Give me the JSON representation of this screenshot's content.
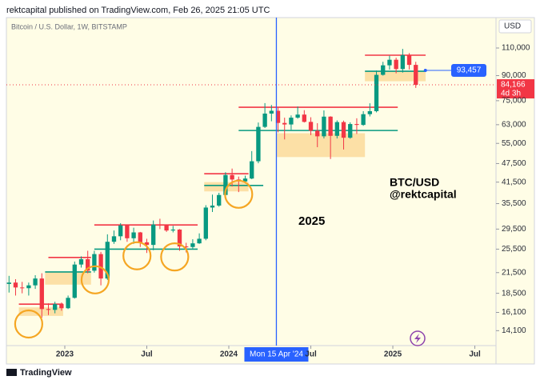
{
  "chart_data": {
    "type": "candlestick",
    "header": "rektcapital published on TradingView.com, Feb 26, 2025 21:05 UTC",
    "title": "Bitcoin / U.S. Dollar, 1W, BITSTAMP",
    "currency": "USD",
    "brand": "TradingView",
    "log_scale": true,
    "grid": false,
    "up_color": "#089981",
    "down_color": "#f23645",
    "x": [
      2022.66,
      2022.7,
      2022.74,
      2022.78,
      2022.82,
      2022.86,
      2022.9,
      2022.94,
      2022.98,
      2023.02,
      2023.06,
      2023.1,
      2023.14,
      2023.18,
      2023.22,
      2023.26,
      2023.3,
      2023.34,
      2023.38,
      2023.42,
      2023.46,
      2023.5,
      2023.54,
      2023.58,
      2023.62,
      2023.66,
      2023.7,
      2023.74,
      2023.78,
      2023.82,
      2023.86,
      2023.9,
      2023.94,
      2023.98,
      2024.02,
      2024.06,
      2024.1,
      2024.14,
      2024.18,
      2024.22,
      2024.26,
      2024.3,
      2024.34,
      2024.38,
      2024.42,
      2024.46,
      2024.5,
      2024.54,
      2024.58,
      2024.62,
      2024.66,
      2024.7,
      2024.74,
      2024.78,
      2024.82,
      2024.86,
      2024.9,
      2024.94,
      2024.98,
      2025.02,
      2025.06,
      2025.1,
      2025.14
    ],
    "open": [
      19800,
      20000,
      19300,
      19200,
      19600,
      20600,
      16500,
      16400,
      17100,
      16600,
      17900,
      22800,
      23700,
      21800,
      24600,
      20600,
      26900,
      28000,
      30300,
      27600,
      28800,
      26800,
      26300,
      30500,
      30300,
      29200,
      29400,
      26000,
      25900,
      26600,
      27500,
      34500,
      35000,
      37800,
      43700,
      42300,
      41700,
      42600,
      48300,
      62000,
      68300,
      69700,
      63800,
      63100,
      66300,
      67800,
      64300,
      60300,
      57900,
      66800,
      58100,
      64200,
      57300,
      63300,
      62900,
      68000,
      69500,
      90500,
      97000,
      101000,
      94400,
      104500,
      97300
    ],
    "high": [
      21000,
      20500,
      20100,
      20000,
      21100,
      21400,
      17200,
      17400,
      17300,
      18200,
      23300,
      24200,
      25200,
      25200,
      25000,
      28400,
      29200,
      30800,
      30500,
      29800,
      28900,
      27500,
      31400,
      31800,
      30500,
      30200,
      29500,
      26700,
      27400,
      28600,
      35100,
      37900,
      38400,
      44600,
      45800,
      43200,
      43500,
      52000,
      64000,
      73700,
      72700,
      71200,
      66300,
      67400,
      71900,
      70000,
      66500,
      63700,
      69900,
      67000,
      65000,
      64900,
      64100,
      66000,
      69500,
      73600,
      93400,
      99500,
      104000,
      102500,
      109300,
      106000,
      99500
    ],
    "low": [
      18600,
      18200,
      18500,
      18200,
      19100,
      15500,
      15800,
      16000,
      16300,
      16500,
      17800,
      22300,
      21400,
      21500,
      19600,
      20400,
      26500,
      27200,
      26900,
      26500,
      25900,
      24800,
      25300,
      29500,
      28900,
      28800,
      25200,
      24900,
      25600,
      26500,
      27200,
      33400,
      34700,
      37500,
      40200,
      38600,
      41100,
      42400,
      47600,
      61500,
      64600,
      59600,
      56600,
      60700,
      65800,
      64000,
      58400,
      53500,
      57000,
      49100,
      57000,
      52600,
      56900,
      58900,
      62500,
      66900,
      68900,
      90000,
      94000,
      91500,
      92000,
      94100,
      82300
    ],
    "close": [
      20000,
      19300,
      19200,
      19600,
      20600,
      16500,
      16400,
      17100,
      16600,
      17900,
      22800,
      23700,
      21800,
      24600,
      20600,
      26900,
      28000,
      30300,
      27600,
      28800,
      26800,
      26300,
      30500,
      30300,
      29200,
      29400,
      26000,
      25900,
      26600,
      27500,
      34500,
      35000,
      37800,
      43700,
      42300,
      41700,
      42600,
      48300,
      62000,
      68300,
      69700,
      63800,
      63100,
      66300,
      67800,
      64300,
      60300,
      57900,
      66800,
      58100,
      64200,
      57300,
      63300,
      62900,
      68000,
      69500,
      90500,
      97000,
      101000,
      94400,
      104500,
      97300,
      84166
    ],
    "last_label": "84,166",
    "countdown": "4d 3h",
    "xlim": [
      2022.644,
      2025.629
    ],
    "xticks": [
      {
        "value": 2023,
        "label": "2023"
      },
      {
        "value": 2023.5,
        "label": "Jul"
      },
      {
        "value": 2024,
        "label": "2024"
      },
      {
        "value": 2024.5,
        "label": "Jul"
      },
      {
        "value": 2025,
        "label": "2025"
      },
      {
        "value": 2025.5,
        "label": "Jul"
      }
    ],
    "ylim": [
      12650,
      137200
    ],
    "yticks": [
      {
        "value": 110000,
        "label": "110,000"
      },
      {
        "value": 90000,
        "label": "90,000"
      },
      {
        "value": 75000,
        "label": "75,000"
      },
      {
        "value": 63000,
        "label": "63,000"
      },
      {
        "value": 55000,
        "label": "55,000"
      },
      {
        "value": 47500,
        "label": "47,500"
      },
      {
        "value": 41500,
        "label": "41,500"
      },
      {
        "value": 35500,
        "label": "35,500"
      },
      {
        "value": 29500,
        "label": "29,500"
      },
      {
        "value": 25500,
        "label": "25,500"
      },
      {
        "value": 21500,
        "label": "21,500"
      },
      {
        "value": 18500,
        "label": "18,500"
      },
      {
        "value": 16100,
        "label": "16,100"
      },
      {
        "value": 14100,
        "label": "14,100"
      }
    ],
    "crosshair": {
      "x": 2024.29,
      "x_label": "Mon 15 Apr '24",
      "price": 93457,
      "price_label": "93,457",
      "color": "#2962ff"
    },
    "levels": [
      {
        "price": 17100,
        "x": [
          2022.72,
          2022.99
        ],
        "color": "#f23645"
      },
      {
        "price": 24000,
        "x": [
          2022.9,
          2023.16
        ],
        "color": "#f23645"
      },
      {
        "price": 21600,
        "x": [
          2022.88,
          2023.16
        ],
        "color": "#089981"
      },
      {
        "price": 30400,
        "x": [
          2023.18,
          2023.81
        ],
        "color": "#f23645"
      },
      {
        "price": 25500,
        "x": [
          2023.18,
          2023.81
        ],
        "color": "#089981"
      },
      {
        "price": 44100,
        "x": [
          2023.85,
          2024.12
        ],
        "color": "#f23645"
      },
      {
        "price": 40500,
        "x": [
          2023.85,
          2024.21
        ],
        "color": "#089981"
      },
      {
        "price": 71500,
        "x": [
          2024.06,
          2025.03
        ],
        "color": "#f23645"
      },
      {
        "price": 60400,
        "x": [
          2024.06,
          2025.03
        ],
        "color": "#089981"
      },
      {
        "price": 104400,
        "x": [
          2024.83,
          2025.2
        ],
        "color": "#f23645"
      },
      {
        "price": 92900,
        "x": [
          2024.83,
          2025.2
        ],
        "color": "#089981"
      }
    ],
    "zones": [
      {
        "x": [
          2022.72,
          2022.99
        ],
        "y": [
          15700,
          16700
        ]
      },
      {
        "x": [
          2022.88,
          2023.16
        ],
        "y": [
          19700,
          21600
        ]
      },
      {
        "x": [
          2023.85,
          2024.12
        ],
        "y": [
          38800,
          41500
        ]
      },
      {
        "x": [
          2024.29,
          2024.83
        ],
        "y": [
          49800,
          59200
        ]
      },
      {
        "x": [
          2024.83,
          2025.2
        ],
        "y": [
          86400,
          92900
        ]
      }
    ],
    "zone_color": "#fbd38a",
    "circles": [
      {
        "x": 2022.78,
        "y": 14800
      },
      {
        "x": 2023.185,
        "y": 20400
      },
      {
        "x": 2023.44,
        "y": 24300
      },
      {
        "x": 2023.67,
        "y": 24100
      },
      {
        "x": 2024.06,
        "y": 38000
      }
    ],
    "circle_color": "#f5a623",
    "annotations": [
      "2025",
      "BTC/USD",
      "@rektcapital"
    ]
  }
}
